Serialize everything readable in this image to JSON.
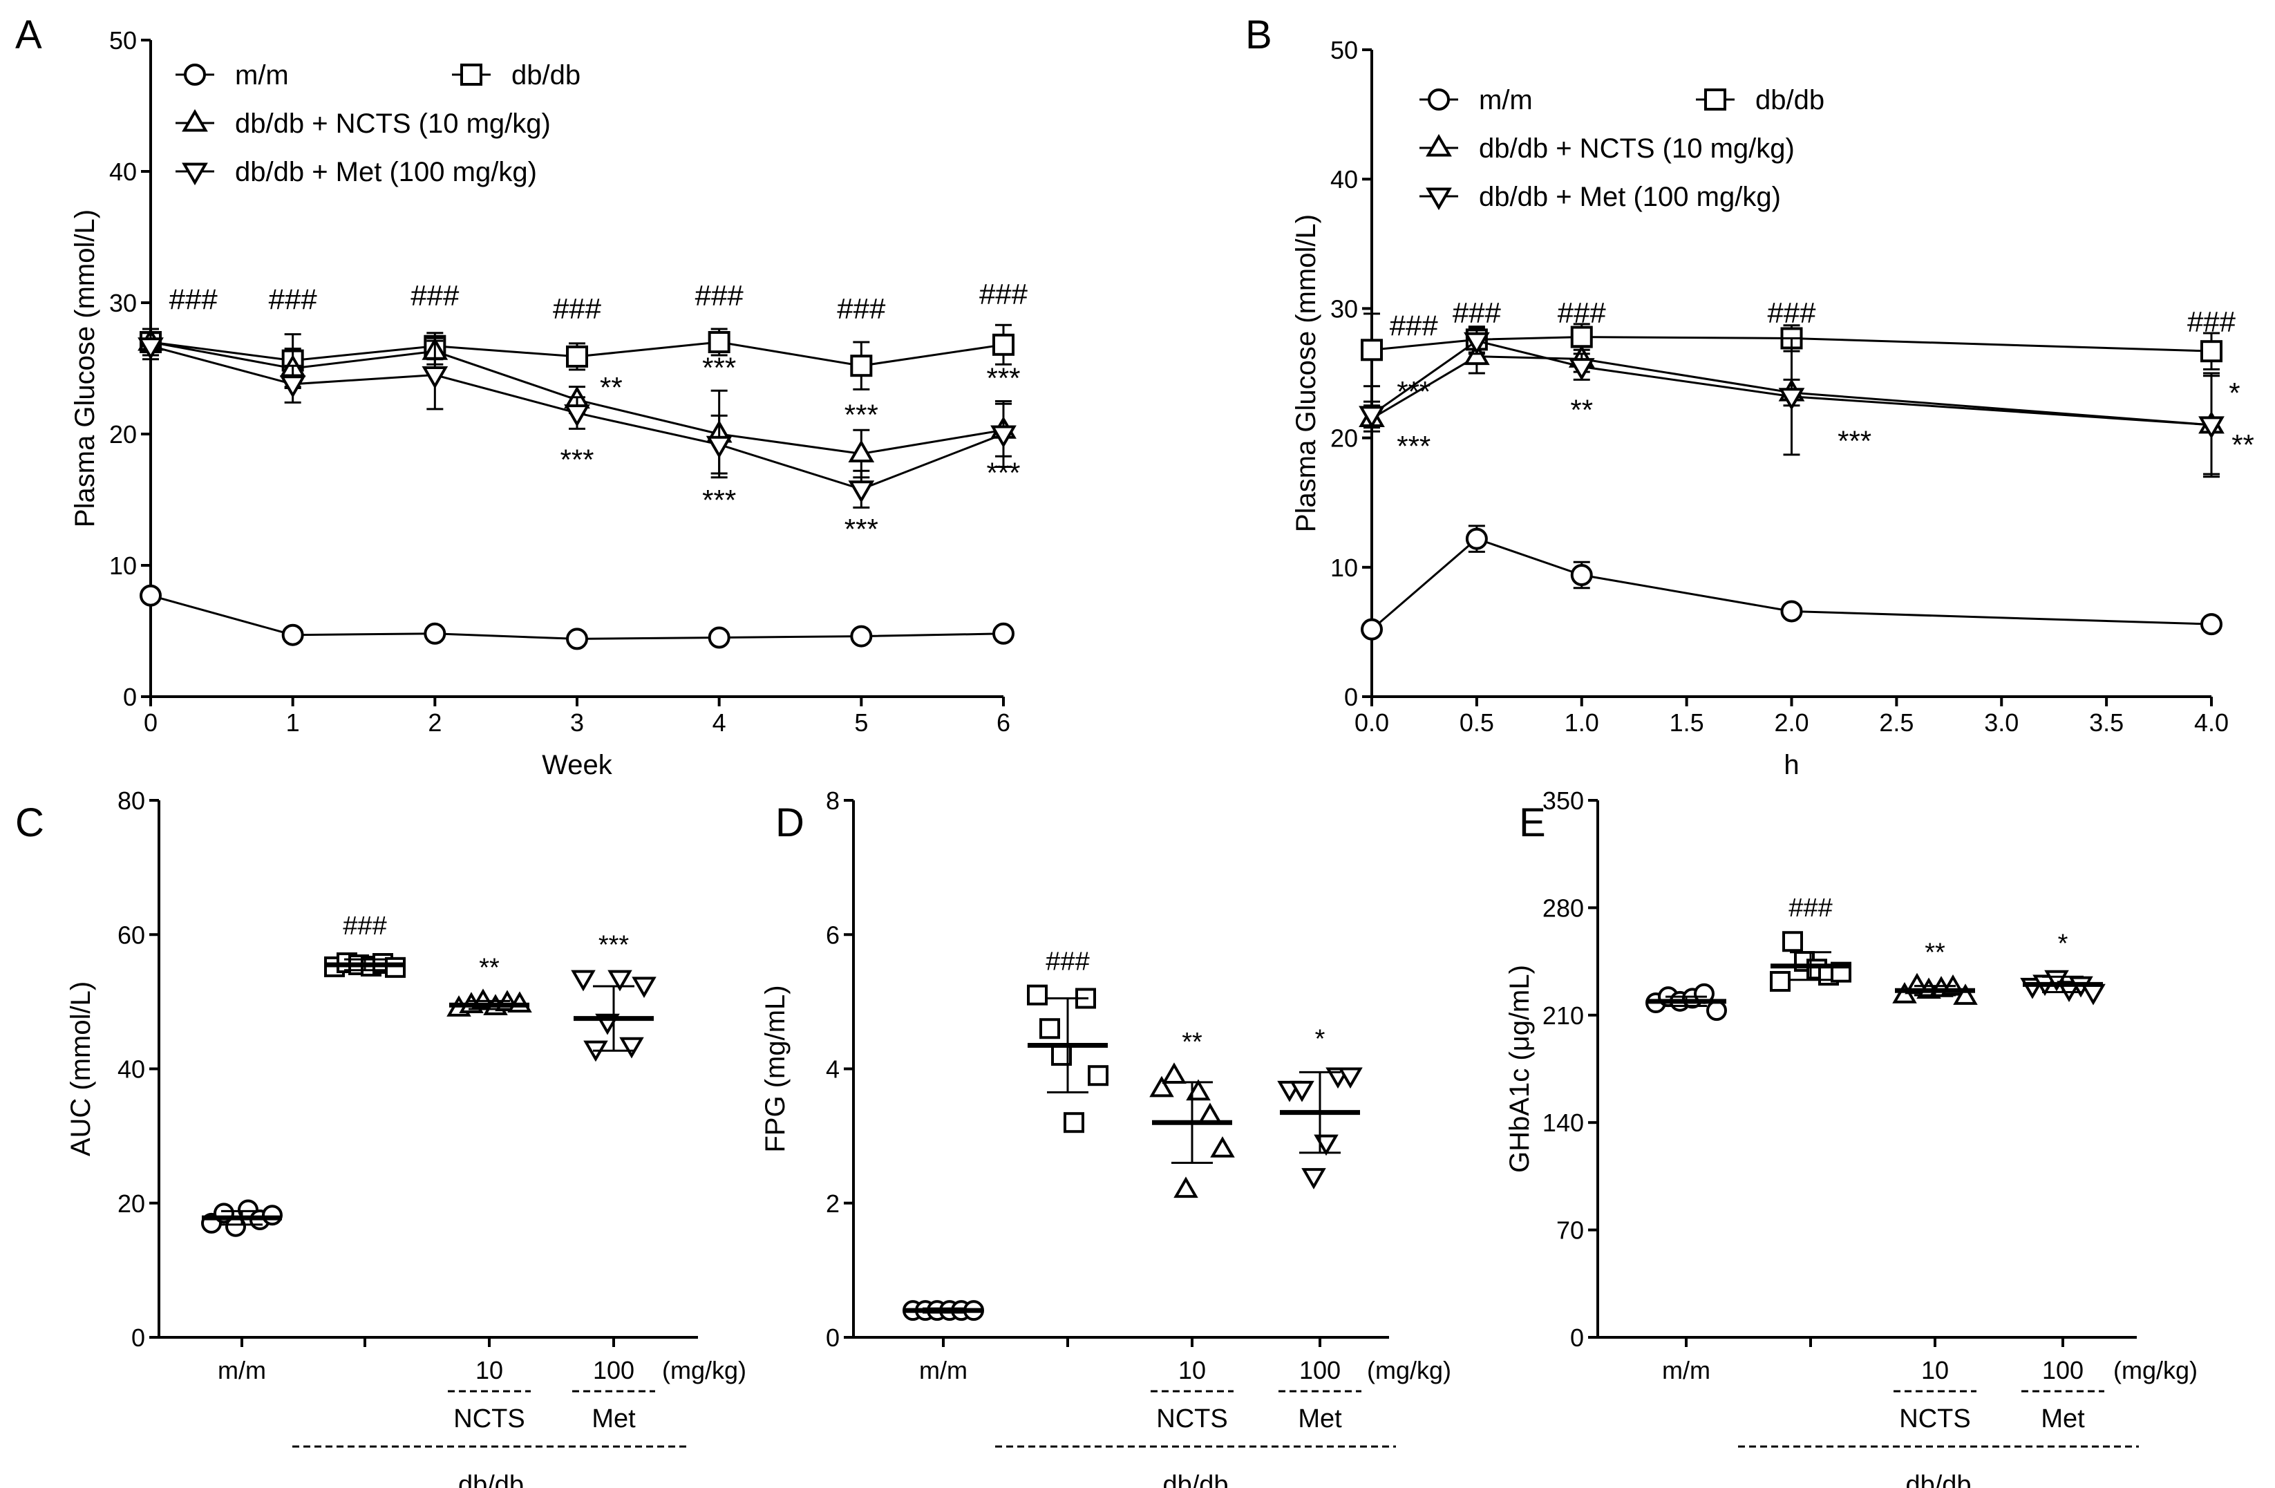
{
  "chart_data": [
    {
      "panel": "A",
      "type": "line",
      "xlabel": "Week",
      "ylabel": "Plasma Glucose (mmol/L)",
      "xlim": [
        0,
        6
      ],
      "ylim": [
        0,
        50
      ],
      "xticks": [
        "0",
        "1",
        "2",
        "3",
        "4",
        "5",
        "6"
      ],
      "yticks": [
        "0",
        "10",
        "20",
        "30",
        "40",
        "50"
      ],
      "legend": {
        "placement": "top-left",
        "entries": [
          "m/m",
          "db/db",
          "db/db + NCTS (10 mg/kg)",
          "db/db + Met (100 mg/kg)"
        ]
      },
      "x": [
        0,
        1,
        2,
        3,
        4,
        5,
        6
      ],
      "series": [
        {
          "name": "m/m",
          "marker": "circle",
          "values": [
            7.7,
            4.7,
            4.8,
            4.4,
            4.5,
            4.6,
            4.8
          ],
          "err": [
            0.4,
            0.3,
            0.3,
            0.3,
            0.3,
            0.3,
            0.3
          ]
        },
        {
          "name": "db/db",
          "marker": "square",
          "values": [
            27,
            25.6,
            26.7,
            25.9,
            27,
            25.2,
            26.8
          ],
          "err": [
            1.0,
            2.0,
            1.0,
            1.0,
            1.0,
            1.8,
            1.5
          ]
        },
        {
          "name": "db/db + NCTS (10 mg/kg)",
          "marker": "triangle-up",
          "values": [
            27,
            25,
            26.3,
            22.6,
            20,
            18.5,
            20.3
          ],
          "err": [
            1.0,
            1.5,
            1.0,
            1.0,
            3.3,
            1.8,
            2.0
          ]
        },
        {
          "name": "db/db + Met (100 mg/kg)",
          "marker": "triangle-down",
          "values": [
            26.7,
            23.8,
            24.5,
            21.6,
            19.2,
            15.8,
            20
          ],
          "err": [
            1.0,
            1.4,
            2.6,
            1.2,
            2.2,
            1.4,
            2.5
          ]
        }
      ],
      "annotations": [
        {
          "x": 0,
          "y": 29.5,
          "text": "###",
          "dx": 0.3
        },
        {
          "x": 1,
          "y": 29.5,
          "text": "###"
        },
        {
          "x": 2,
          "y": 29.8,
          "text": "###"
        },
        {
          "x": 3,
          "y": 28.8,
          "text": "###"
        },
        {
          "x": 4,
          "y": 29.8,
          "text": "###"
        },
        {
          "x": 5,
          "y": 28.8,
          "text": "###"
        },
        {
          "x": 6,
          "y": 29.9,
          "text": "###"
        },
        {
          "x": 3,
          "y": 22.8,
          "text": "**",
          "dx": 0.24
        },
        {
          "x": 3,
          "y": 17.3,
          "text": "***"
        },
        {
          "x": 4,
          "y": 24.3,
          "text": "***"
        },
        {
          "x": 4,
          "y": 14.2,
          "text": "***"
        },
        {
          "x": 5,
          "y": 20.7,
          "text": "***"
        },
        {
          "x": 5,
          "y": 12.0,
          "text": "***"
        },
        {
          "x": 6,
          "y": 23.5,
          "text": "***"
        },
        {
          "x": 6,
          "y": 16.3,
          "text": "***"
        }
      ]
    },
    {
      "panel": "B",
      "type": "line",
      "xlabel": "h",
      "ylabel": "Plasma Glucose (mmol/L)",
      "xlim": [
        0,
        4
      ],
      "ylim": [
        0,
        50
      ],
      "xticks": [
        "0.0",
        "0.5",
        "1.0",
        "1.5",
        "2.0",
        "2.5",
        "3.0",
        "3.5",
        "4.0"
      ],
      "yticks": [
        "0",
        "10",
        "20",
        "30",
        "40",
        "50"
      ],
      "legend": {
        "placement": "top-left",
        "entries": [
          "m/m",
          "db/db",
          "db/db + NCTS (10 mg/kg)",
          "db/db + Met (100 mg/kg)"
        ]
      },
      "x": [
        0,
        0.5,
        1,
        2,
        4
      ],
      "series": [
        {
          "name": "m/m",
          "marker": "circle",
          "values": [
            5.2,
            12.2,
            9.4,
            6.6,
            5.6
          ],
          "err": [
            0.4,
            1.0,
            1.0,
            0.4,
            0.4
          ]
        },
        {
          "name": "db/db",
          "marker": "square",
          "values": [
            26.8,
            27.6,
            27.8,
            27.7,
            26.7
          ],
          "err": [
            2.8,
            1.0,
            1.0,
            1.0,
            1.4
          ]
        },
        {
          "name": "db/db + NCTS (10 mg/kg)",
          "marker": "triangle-up",
          "values": [
            21.5,
            26.3,
            26.1,
            23.5,
            21
          ],
          "err": [
            1.0,
            1.3,
            1.0,
            1.0,
            3.8
          ]
        },
        {
          "name": "db/db + Met (100 mg/kg)",
          "marker": "triangle-down",
          "values": [
            21.8,
            27.5,
            25.5,
            23.2,
            21
          ],
          "err": [
            1.0,
            1.0,
            1.0,
            4.5,
            4.0
          ]
        }
      ],
      "annotations": [
        {
          "x": 0,
          "y": 27.9,
          "text": "###",
          "dx": 0.2
        },
        {
          "x": 0.5,
          "y": 28.9,
          "text": "###"
        },
        {
          "x": 1,
          "y": 28.9,
          "text": "###"
        },
        {
          "x": 2,
          "y": 28.9,
          "text": "###"
        },
        {
          "x": 4,
          "y": 28.2,
          "text": "###"
        },
        {
          "x": 0,
          "y": 22.8,
          "text": "***",
          "dx": 0.2
        },
        {
          "x": 0,
          "y": 18.6,
          "text": "***",
          "dx": 0.2
        },
        {
          "x": 1,
          "y": 21.4,
          "text": "**"
        },
        {
          "x": 2,
          "y": 19.0,
          "text": "***",
          "dx": 0.3
        },
        {
          "x": 4,
          "y": 22.7,
          "text": "*",
          "dx": 0.11
        },
        {
          "x": 4,
          "y": 18.7,
          "text": "**",
          "dx": 0.15
        }
      ]
    },
    {
      "panel": "C",
      "type": "scatter",
      "ylabel": "AUC (mmol/L)",
      "ylim": [
        0,
        80
      ],
      "yticks": [
        "0",
        "20",
        "40",
        "60",
        "80"
      ],
      "groups": [
        {
          "marker": "circle",
          "points": [
            17,
            18.5,
            16.5,
            19,
            17.5,
            18.2
          ],
          "mean": 17.8,
          "sd": 1.0
        },
        {
          "marker": "square",
          "points": [
            55.2,
            55.8,
            55.5,
            55.3,
            55.7,
            55.1
          ],
          "mean": 55.5,
          "sd": 0.8,
          "annotation": "###"
        },
        {
          "marker": "triangle-up",
          "points": [
            49,
            49.5,
            50,
            49.2,
            49.8,
            49.6
          ],
          "mean": 49.5,
          "sd": 0.6,
          "annotation": "**"
        },
        {
          "marker": "triangle-down",
          "points": [
            53.5,
            43,
            47,
            53.5,
            43.5,
            52.5
          ],
          "mean": 47.5,
          "sd": 4.8,
          "annotation": "***"
        }
      ],
      "xlabels": [
        "m/m",
        "",
        "10",
        "100"
      ],
      "unit": "(mg/kg)",
      "subgroups": [
        "NCTS",
        "Met"
      ],
      "group": "db/db"
    },
    {
      "panel": "D",
      "type": "scatter",
      "ylabel": "FPG (mg/mL)",
      "ylim": [
        0,
        8
      ],
      "yticks": [
        "0",
        "2",
        "4",
        "6",
        "8"
      ],
      "groups": [
        {
          "marker": "circle",
          "points": [
            0.4,
            0.4,
            0.4,
            0.4,
            0.4,
            0.4
          ],
          "mean": 0.4,
          "sd": 0.03
        },
        {
          "marker": "square",
          "points": [
            5.1,
            4.6,
            4.2,
            3.2,
            5.05,
            3.9
          ],
          "mean": 4.35,
          "sd": 0.7,
          "annotation": "###"
        },
        {
          "marker": "triangle-up",
          "points": [
            3.7,
            3.9,
            2.2,
            3.65,
            3.3,
            2.8
          ],
          "mean": 3.2,
          "sd": 0.6,
          "annotation": "**"
        },
        {
          "marker": "triangle-down",
          "points": [
            3.7,
            3.7,
            2.4,
            2.9,
            3.9,
            3.9
          ],
          "mean": 3.35,
          "sd": 0.6,
          "annotation": "*"
        }
      ],
      "xlabels": [
        "m/m",
        "",
        "10",
        "100"
      ],
      "unit": "(mg/kg)",
      "subgroups": [
        "NCTS",
        "Met"
      ],
      "group": "db/db"
    },
    {
      "panel": "E",
      "type": "scatter",
      "ylabel": "GHbA1c (μg/mL)",
      "ylim": [
        0,
        350
      ],
      "yticks": [
        "0",
        "70",
        "140",
        "210",
        "280",
        "350"
      ],
      "groups": [
        {
          "marker": "circle",
          "points": [
            218,
            222,
            219,
            221,
            224,
            213
          ],
          "mean": 219,
          "sd": 3
        },
        {
          "marker": "square",
          "points": [
            232,
            258,
            245,
            240,
            236,
            238
          ],
          "mean": 242,
          "sd": 9,
          "annotation": "###"
        },
        {
          "marker": "triangle-up",
          "points": [
            223,
            229,
            226,
            227,
            228,
            222
          ],
          "mean": 226,
          "sd": 3,
          "annotation": "**"
        },
        {
          "marker": "triangle-down",
          "points": [
            229,
            231,
            234,
            227,
            230,
            225
          ],
          "mean": 230,
          "sd": 5,
          "annotation": "*"
        }
      ],
      "xlabels": [
        "m/m",
        "",
        "10",
        "100"
      ],
      "unit": "(mg/kg)",
      "subgroups": [
        "NCTS",
        "Met"
      ],
      "group": "db/db"
    }
  ]
}
